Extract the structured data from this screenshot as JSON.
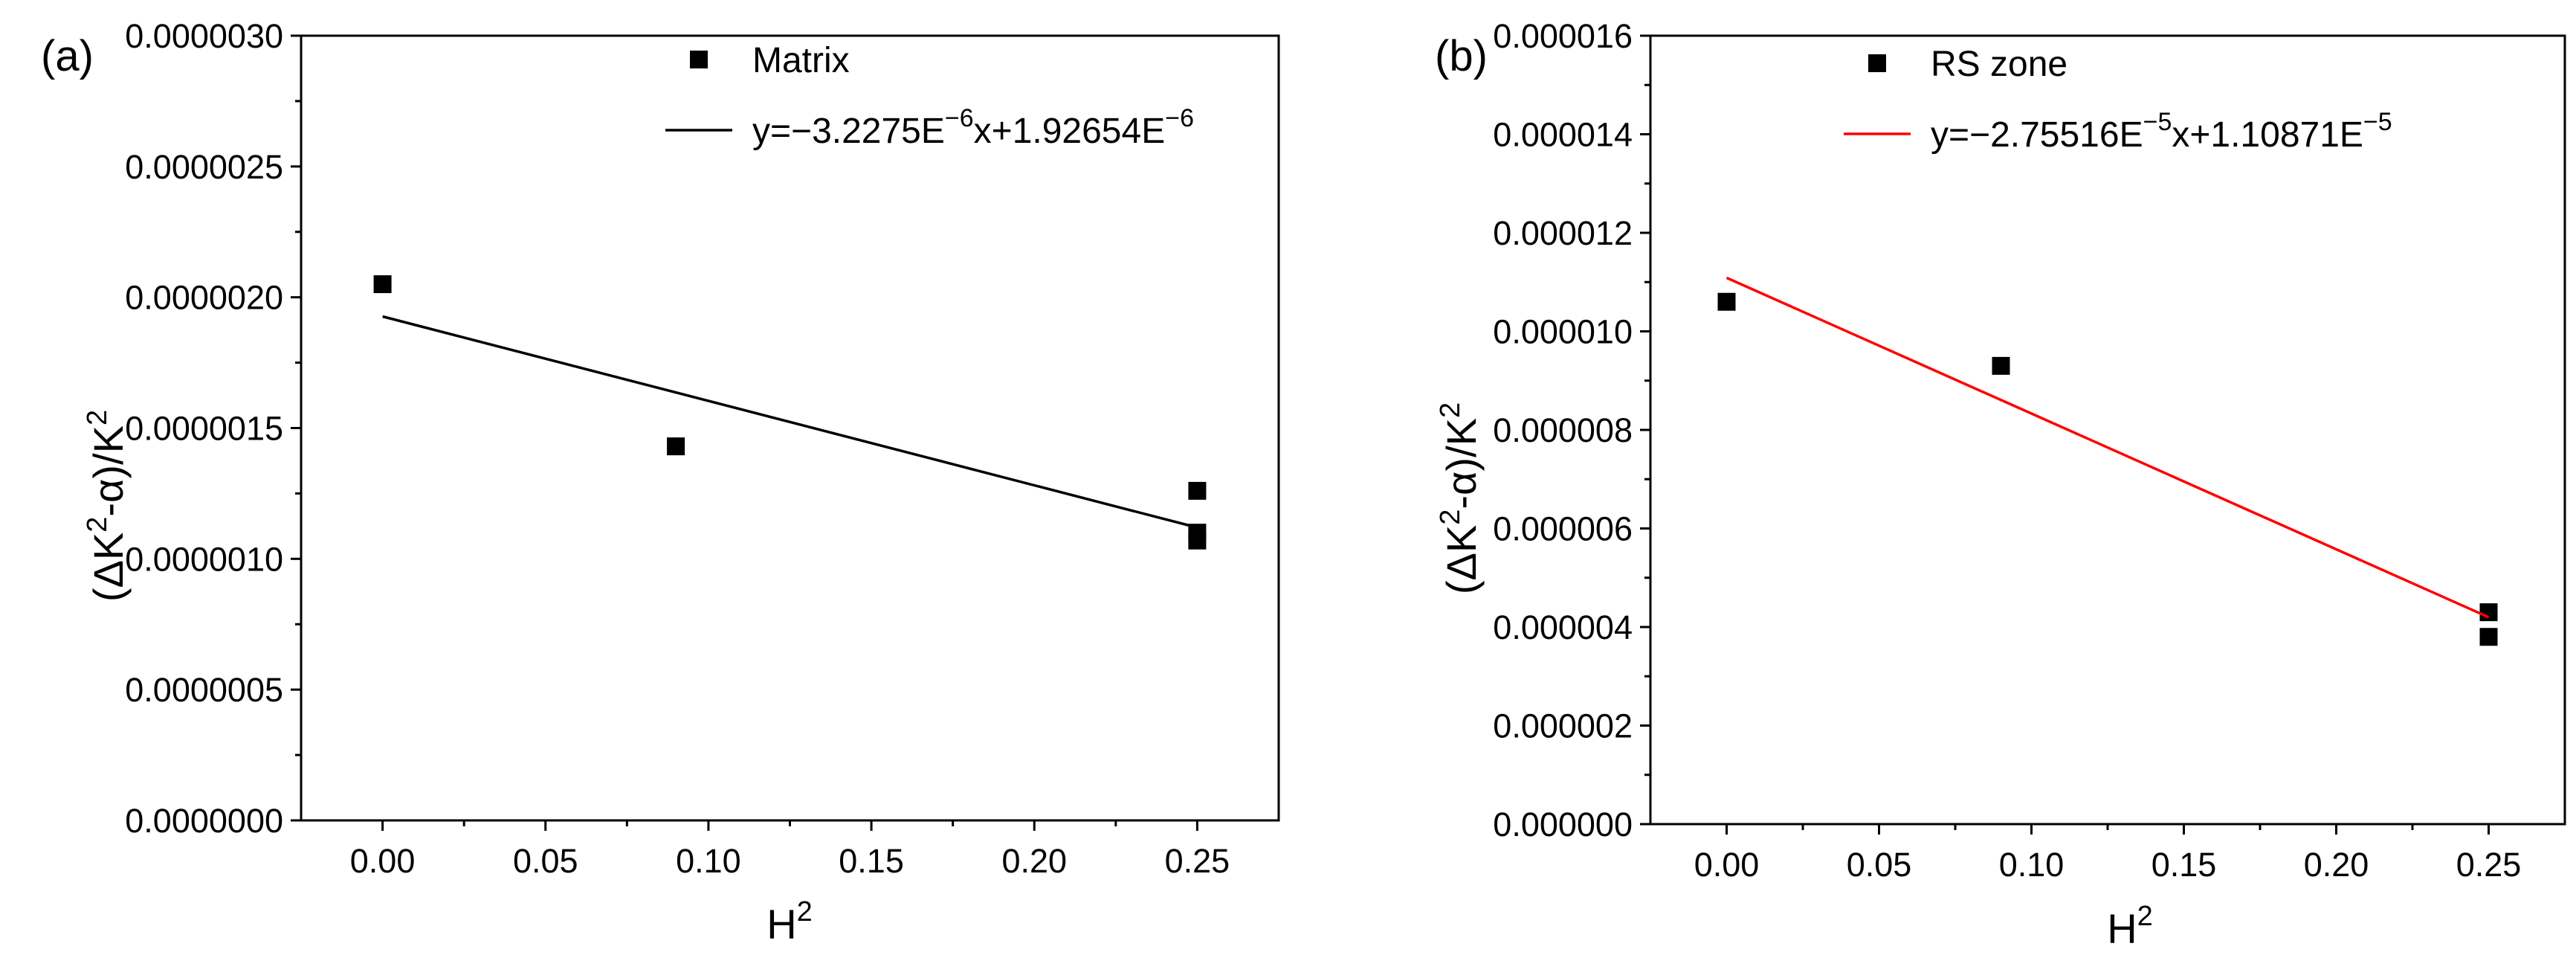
{
  "chart_data": [
    {
      "type": "scatter",
      "panel_label": "(a)",
      "xlabel_base": "H",
      "xlabel_sup": "2",
      "ylabel_parts": [
        "(ΔK",
        "2",
        "-α)/K",
        "2"
      ],
      "xlim": [
        -0.025,
        0.275
      ],
      "ylim": [
        0,
        3e-06
      ],
      "xticks": [
        "0.00",
        "0.05",
        "0.10",
        "0.15",
        "0.20",
        "0.25"
      ],
      "xtick_values": [
        0,
        0.05,
        0.1,
        0.15,
        0.2,
        0.25
      ],
      "yticks": [
        "0.0000000",
        "0.0000005",
        "0.0000010",
        "0.0000015",
        "0.0000020",
        "0.0000025",
        "0.0000030"
      ],
      "ytick_values": [
        0,
        5e-07,
        1e-06,
        1.5e-06,
        2e-06,
        2.5e-06,
        3e-06
      ],
      "series": [
        {
          "name": "Matrix",
          "kind": "scatter",
          "color": "#000000",
          "x": [
            0,
            0.09,
            0.25,
            0.25,
            0.25
          ],
          "y": [
            2.05e-06,
            1.43e-06,
            1.26e-06,
            1.1e-06,
            1.07e-06
          ]
        },
        {
          "kind": "line",
          "color": "#000000",
          "slope": -3.2275e-06,
          "intercept": 1.92654e-06,
          "x_range": [
            0,
            0.25
          ],
          "legend_parts": [
            "y=−3.2275E",
            "−6",
            "x+1.92654E",
            "−6"
          ]
        }
      ],
      "legend_placement": "top-right"
    },
    {
      "type": "scatter",
      "panel_label": "(b)",
      "xlabel_base": "H",
      "xlabel_sup": "2",
      "ylabel_parts": [
        "(ΔK",
        "2",
        "-α)/K",
        "2"
      ],
      "xlim": [
        -0.025,
        0.275
      ],
      "ylim": [
        0,
        1.6e-05
      ],
      "xticks": [
        "0.00",
        "0.05",
        "0.10",
        "0.15",
        "0.20",
        "0.25"
      ],
      "xtick_values": [
        0,
        0.05,
        0.1,
        0.15,
        0.2,
        0.25
      ],
      "yticks": [
        "0.000000",
        "0.000002",
        "0.000004",
        "0.000006",
        "0.000008",
        "0.000010",
        "0.000012",
        "0.000014",
        "0.000016"
      ],
      "ytick_values": [
        0,
        2e-06,
        4e-06,
        6e-06,
        8e-06,
        1e-05,
        1.2e-05,
        1.4e-05,
        1.6e-05
      ],
      "series": [
        {
          "name": "RS zone",
          "kind": "scatter",
          "color": "#000000",
          "x": [
            0,
            0.09,
            0.25,
            0.25
          ],
          "y": [
            1.06e-05,
            9.3e-06,
            4.3e-06,
            3.8e-06
          ]
        },
        {
          "kind": "line",
          "color": "#ff0000",
          "slope": -2.75516e-05,
          "intercept": 1.10871e-05,
          "x_range": [
            0,
            0.25
          ],
          "legend_parts": [
            "y=−2.75516E",
            "−5",
            "x+1.10871E",
            "−5"
          ]
        }
      ],
      "legend_placement": "top-right"
    }
  ]
}
